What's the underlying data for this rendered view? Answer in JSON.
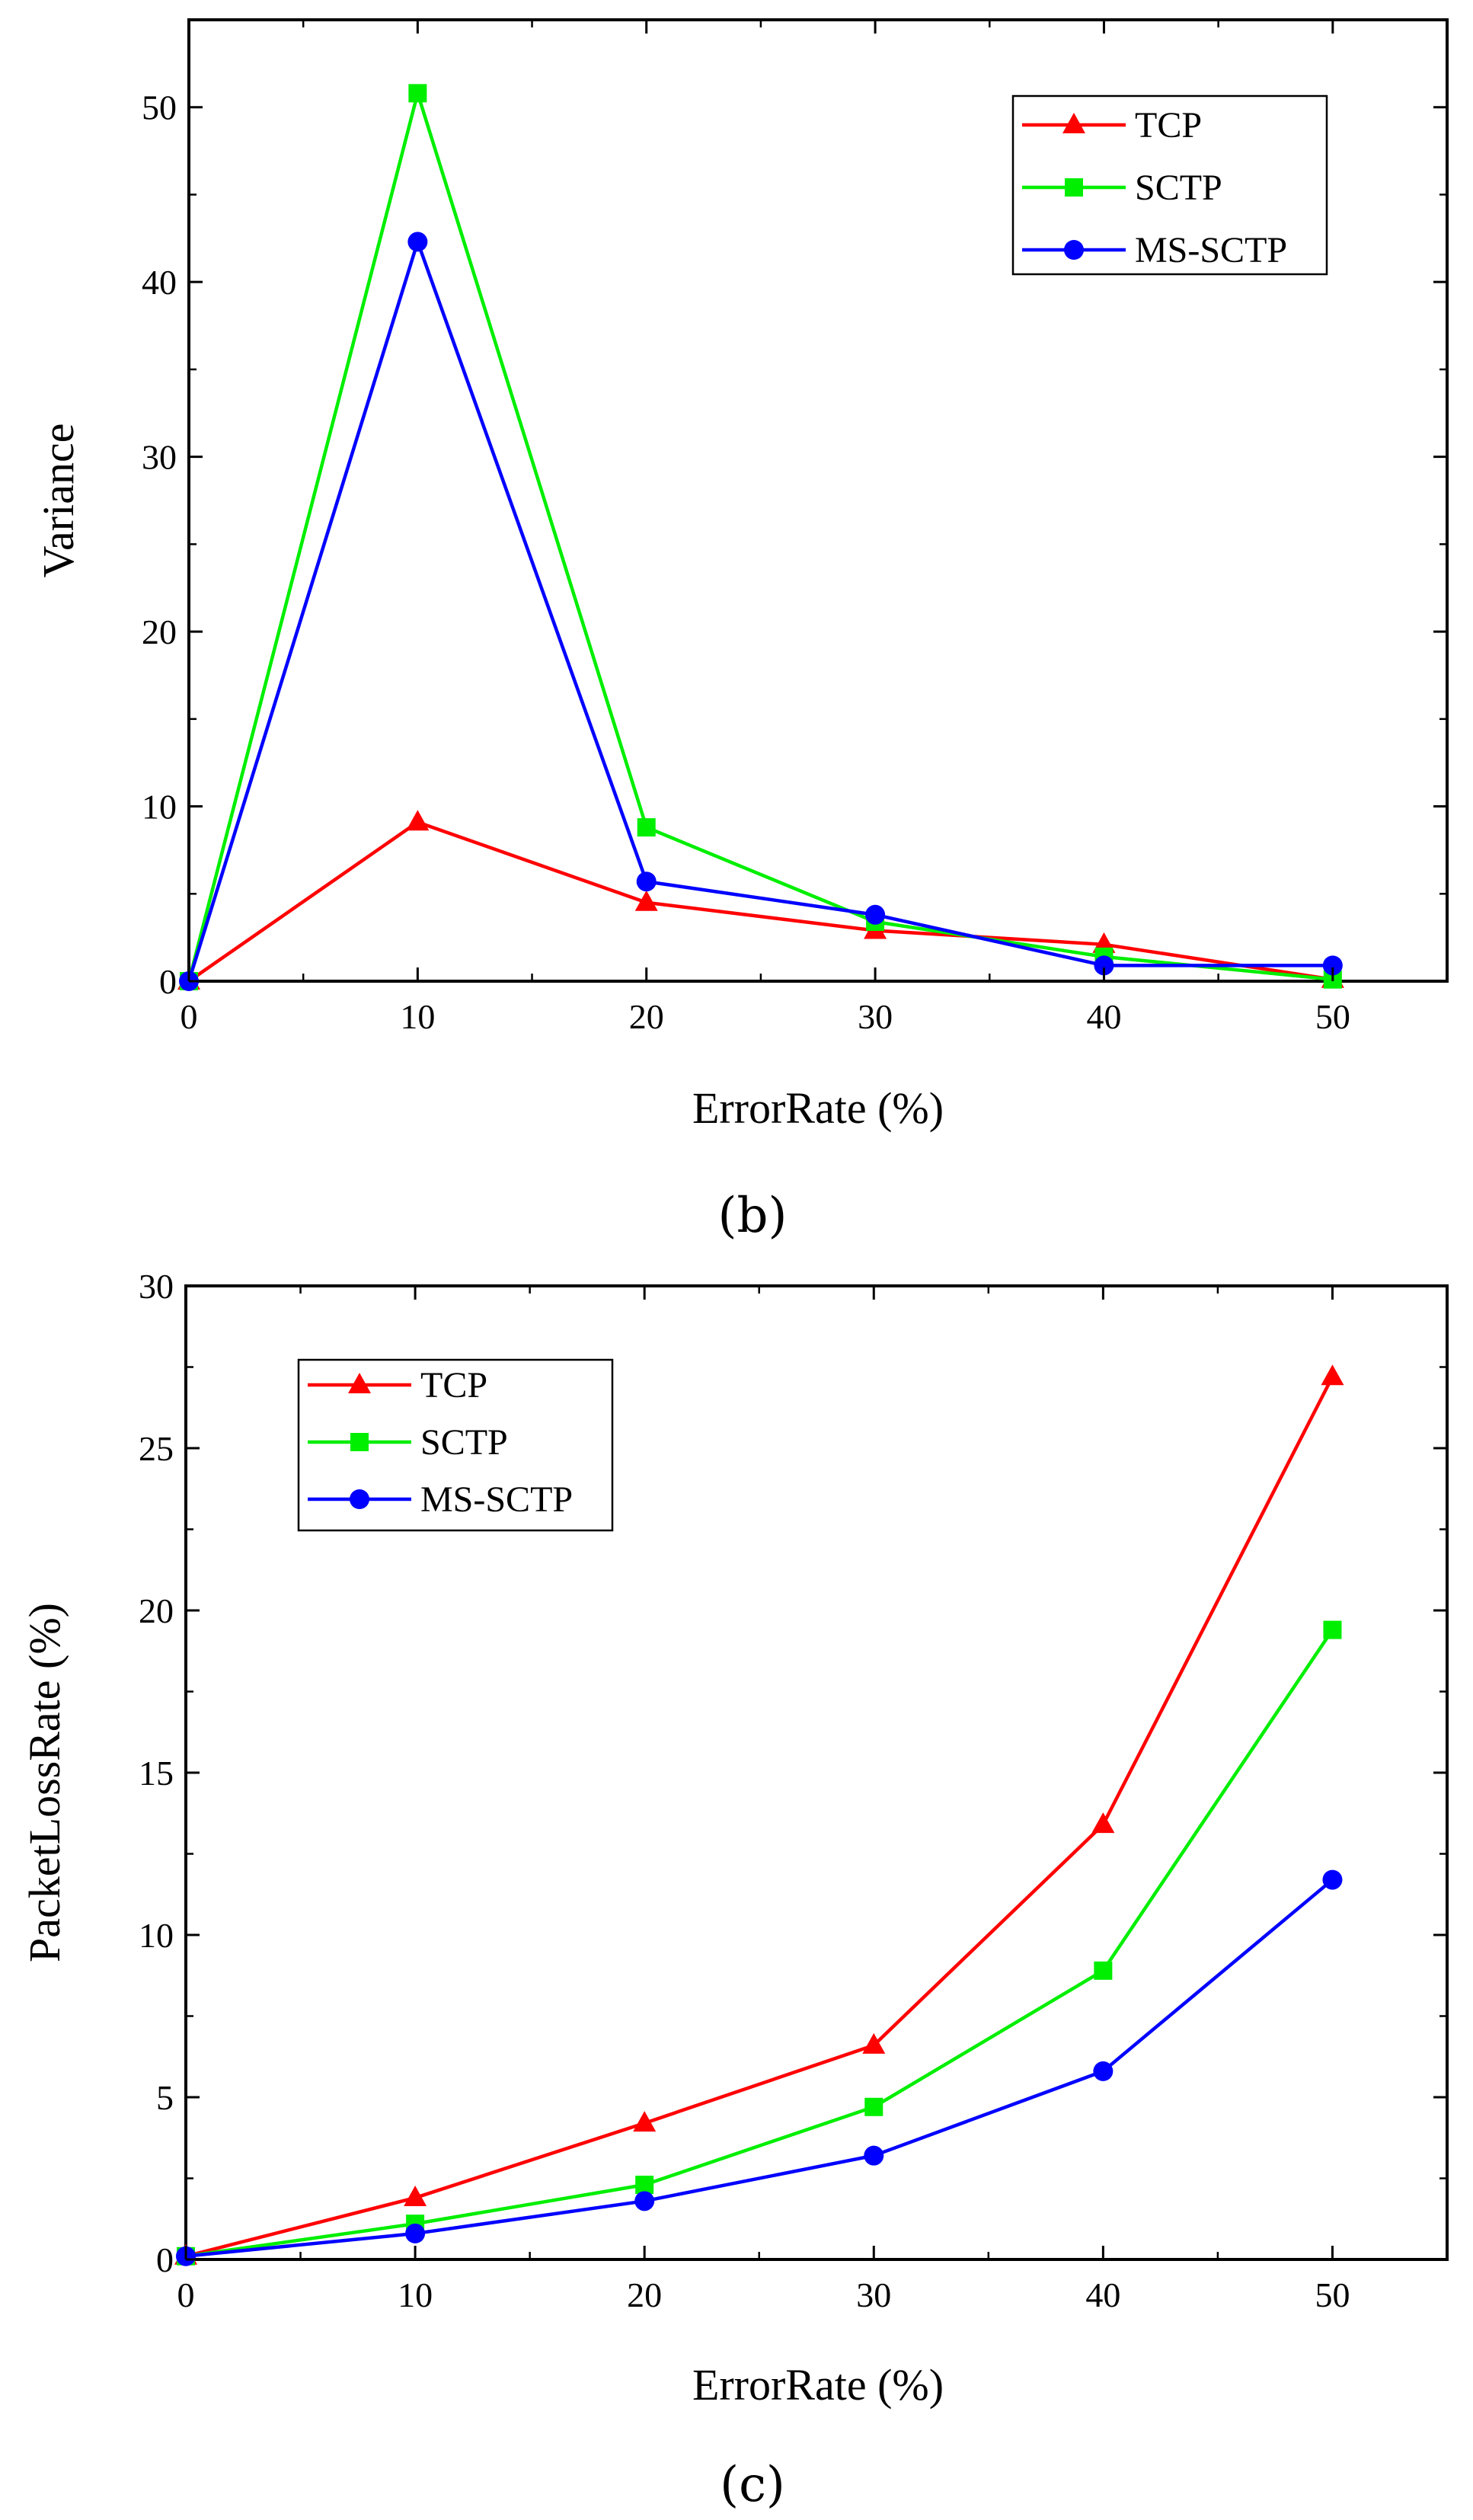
{
  "chart_data": [
    {
      "type": "line",
      "caption": "(b)",
      "xlabel": "ErrorRate (%)",
      "ylabel": "Variance",
      "xlim": [
        0,
        55
      ],
      "ylim": [
        0,
        55
      ],
      "xticks": [
        0,
        10,
        20,
        30,
        40,
        50
      ],
      "yticks": [
        0,
        10,
        20,
        30,
        40,
        50
      ],
      "legend_position": "top-right",
      "series": [
        {
          "name": "TCP",
          "color": "#ff0000",
          "marker": "triangle",
          "x": [
            0,
            10,
            20,
            30,
            40,
            50
          ],
          "y": [
            0,
            9.1,
            4.5,
            2.9,
            2.1,
            0.1
          ]
        },
        {
          "name": "SCTP",
          "color": "#00ee00",
          "marker": "square",
          "x": [
            0,
            10,
            20,
            30,
            40,
            50
          ],
          "y": [
            0,
            50.8,
            8.8,
            3.4,
            1.4,
            0.1
          ]
        },
        {
          "name": "MS-SCTP",
          "color": "#0000ff",
          "marker": "circle",
          "x": [
            0,
            10,
            20,
            30,
            40,
            50
          ],
          "y": [
            0,
            42.3,
            5.7,
            3.8,
            0.9,
            0.9
          ]
        }
      ]
    },
    {
      "type": "line",
      "caption": "(c)",
      "xlabel": "ErrorRate (%)",
      "ylabel": "PacketLossRate (%)",
      "xlim": [
        0,
        55
      ],
      "ylim": [
        0,
        30
      ],
      "xticks": [
        0,
        10,
        20,
        30,
        40,
        50
      ],
      "yticks": [
        0,
        5,
        10,
        15,
        20,
        25,
        30
      ],
      "legend_position": "top-left",
      "series": [
        {
          "name": "TCP",
          "color": "#ff0000",
          "marker": "triangle",
          "x": [
            0,
            10,
            20,
            30,
            40,
            50
          ],
          "y": [
            0.1,
            1.9,
            4.2,
            6.6,
            13.4,
            27.2
          ]
        },
        {
          "name": "SCTP",
          "color": "#00ee00",
          "marker": "square",
          "x": [
            0,
            10,
            20,
            30,
            40,
            50
          ],
          "y": [
            0.1,
            1.1,
            2.3,
            4.7,
            8.9,
            19.4
          ]
        },
        {
          "name": "MS-SCTP",
          "color": "#0000ff",
          "marker": "circle",
          "x": [
            0,
            10,
            20,
            30,
            40,
            50
          ],
          "y": [
            0.1,
            0.8,
            1.8,
            3.2,
            5.8,
            11.7
          ]
        }
      ]
    }
  ]
}
